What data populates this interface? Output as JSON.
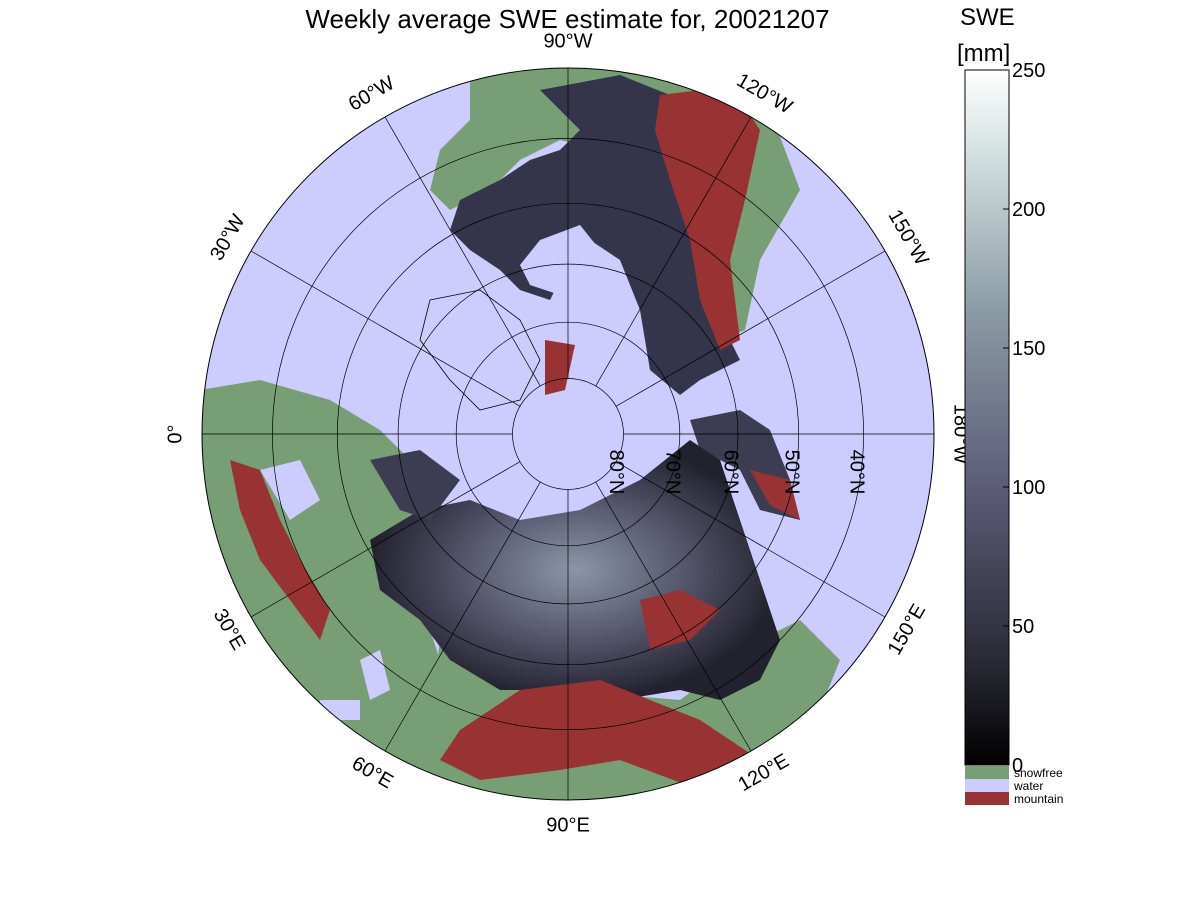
{
  "title": "Weekly average SWE estimate for, 20021207",
  "colorbar": {
    "label_line1": "SWE",
    "label_line2": "[mm]",
    "ticks": [
      "0",
      "50",
      "100",
      "150",
      "200",
      "250"
    ],
    "tick_values": [
      0,
      50,
      100,
      150,
      200,
      250
    ],
    "range": [
      0,
      250
    ],
    "categories": [
      {
        "label": "snowfree",
        "color": "#779e74"
      },
      {
        "label": "water",
        "color": "#ccccff"
      },
      {
        "label": "mountain",
        "color": "#993333"
      }
    ]
  },
  "map": {
    "projection": "north polar stereographic",
    "longitude_labels": [
      {
        "text": "90°W",
        "lon": 90
      },
      {
        "text": "120°W",
        "lon": 120
      },
      {
        "text": "150°W",
        "lon": 150
      },
      {
        "text": "180°W",
        "lon": 180
      },
      {
        "text": "150°E",
        "lon": 210
      },
      {
        "text": "120°E",
        "lon": 240
      },
      {
        "text": "90°E",
        "lon": 270
      },
      {
        "text": "60°E",
        "lon": 300
      },
      {
        "text": "30°E",
        "lon": 330
      },
      {
        "text": "0°",
        "lon": 0
      },
      {
        "text": "30°W",
        "lon": 30
      },
      {
        "text": "60°W",
        "lon": 60
      }
    ],
    "latitude_labels": [
      "80°N",
      "70°N",
      "60°N",
      "50°N",
      "40°N"
    ],
    "latitude_values": [
      80,
      70,
      60,
      50,
      40
    ],
    "colors": {
      "water": "#ccccff",
      "snowfree": "#779e74",
      "mountain": "#993333",
      "snow_dark": "#22222e",
      "snow_mid": "#4e4e64",
      "snow_light": "#8c96a8"
    }
  }
}
